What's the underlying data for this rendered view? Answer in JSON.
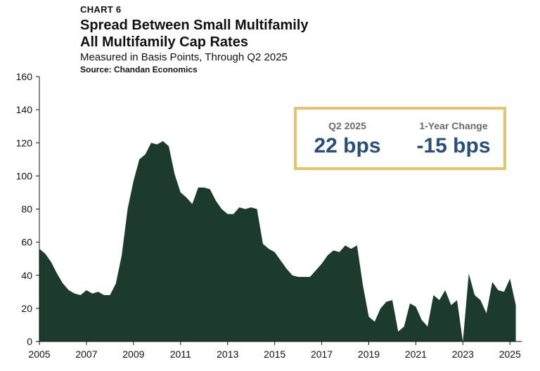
{
  "header": {
    "chart_number": "CHART 6",
    "title_line1": "Spread Between Small Multifamily",
    "title_line2": "All Multifamily Cap Rates",
    "subtitle": "Measured in Basis Points, Through Q2 2025",
    "source": "Source: Chandan Economics"
  },
  "kpis": {
    "q2_label": "Q2 2025",
    "q2_value": "22 bps",
    "change_label": "1-Year Change",
    "change_value": "-15 bps"
  },
  "colors": {
    "area_fill": "#1d3a2f",
    "box_border": "#e3c46f",
    "kpi_value": "#2a4e78"
  },
  "chart_data": {
    "type": "area",
    "title": "Spread Between Small Multifamily All Multifamily Cap Rates",
    "xlabel": "",
    "ylabel": "",
    "ylim": [
      0,
      160
    ],
    "xlim": [
      2005,
      2025.5
    ],
    "grid": false,
    "legend": "none",
    "y_ticks": [
      "0",
      "20",
      "40",
      "60",
      "80",
      "100",
      "120",
      "140",
      "160"
    ],
    "x_ticks": [
      "2005",
      "2007",
      "2009",
      "2011",
      "2013",
      "2015",
      "2017",
      "2019",
      "2021",
      "2023",
      "2025"
    ],
    "x": [
      2005.0,
      2005.25,
      2005.5,
      2005.75,
      2006.0,
      2006.25,
      2006.5,
      2006.75,
      2007.0,
      2007.25,
      2007.5,
      2007.75,
      2008.0,
      2008.25,
      2008.5,
      2008.75,
      2009.0,
      2009.25,
      2009.5,
      2009.75,
      2010.0,
      2010.25,
      2010.5,
      2010.75,
      2011.0,
      2011.25,
      2011.5,
      2011.75,
      2012.0,
      2012.25,
      2012.5,
      2012.75,
      2013.0,
      2013.25,
      2013.5,
      2013.75,
      2014.0,
      2014.25,
      2014.5,
      2014.75,
      2015.0,
      2015.25,
      2015.5,
      2015.75,
      2016.0,
      2016.25,
      2016.5,
      2016.75,
      2017.0,
      2017.25,
      2017.5,
      2017.75,
      2018.0,
      2018.25,
      2018.5,
      2018.75,
      2019.0,
      2019.25,
      2019.5,
      2019.75,
      2020.0,
      2020.25,
      2020.5,
      2020.75,
      2021.0,
      2021.25,
      2021.5,
      2021.75,
      2022.0,
      2022.25,
      2022.5,
      2022.75,
      2023.0,
      2023.25,
      2023.5,
      2023.75,
      2024.0,
      2024.25,
      2024.5,
      2024.75,
      2025.0,
      2025.25
    ],
    "series": [
      {
        "values": [
          56,
          53,
          48,
          41,
          35,
          31,
          29,
          28,
          31,
          29,
          30,
          28,
          28,
          35,
          52,
          80,
          97,
          110,
          113,
          120,
          119,
          121,
          118,
          101,
          90,
          87,
          83,
          93,
          93,
          92,
          85,
          80,
          77,
          77,
          81,
          80,
          81,
          80,
          59,
          56,
          54,
          49,
          44,
          40,
          39,
          39,
          39,
          43,
          47,
          52,
          55,
          54,
          58,
          56,
          58,
          34,
          15,
          12,
          20,
          24,
          25,
          6,
          9,
          23,
          21,
          13,
          9,
          28,
          25,
          31,
          22,
          25,
          0,
          41,
          28,
          25,
          17,
          36,
          31,
          30,
          38,
          22
        ]
      }
    ]
  }
}
